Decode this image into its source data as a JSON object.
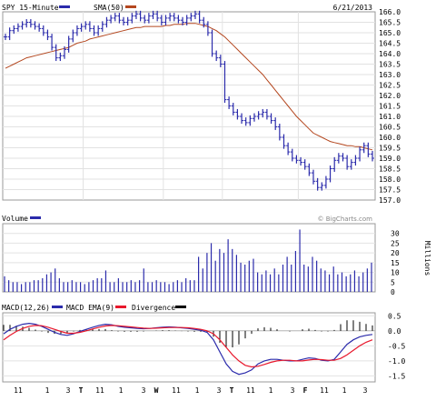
{
  "chart_data": [
    {
      "type": "bar",
      "subtype": "ohlc",
      "title": "SPY 15-Minute",
      "date": "6/21/2013",
      "legend": [
        {
          "label": "SPY 15-Minute",
          "color": "#2b2bab"
        },
        {
          "label": "SMA(50)",
          "color": "#b4471f"
        }
      ],
      "ylim": [
        157.0,
        166.0
      ],
      "yticks": [
        "166.0",
        "165.5",
        "165.0",
        "164.5",
        "164.0",
        "163.5",
        "163.0",
        "162.5",
        "162.0",
        "161.5",
        "161.0",
        "160.5",
        "160.0",
        "159.5",
        "159.0",
        "158.5",
        "158.0",
        "157.5",
        "157.0"
      ],
      "grid": true,
      "series": [
        {
          "name": "SPY 15-Minute",
          "values": [
            164.8,
            165.1,
            165.2,
            165.3,
            165.4,
            165.5,
            165.4,
            165.3,
            165.2,
            165.0,
            164.8,
            164.3,
            163.8,
            163.9,
            164.2,
            164.7,
            165.0,
            165.2,
            165.3,
            165.4,
            165.2,
            165.0,
            165.2,
            165.4,
            165.6,
            165.7,
            165.8,
            165.6,
            165.5,
            165.6,
            165.8,
            165.9,
            165.7,
            165.6,
            165.8,
            165.9,
            165.7,
            165.5,
            165.7,
            165.8,
            165.7,
            165.6,
            165.5,
            165.7,
            165.8,
            165.9,
            165.6,
            165.4,
            165.0,
            164.0,
            163.8,
            163.5,
            161.8,
            161.5,
            161.2,
            161.0,
            160.8,
            160.7,
            160.9,
            161.0,
            161.1,
            161.2,
            161.0,
            160.8,
            160.5,
            160.0,
            159.6,
            159.3,
            159.0,
            158.9,
            158.8,
            158.6,
            158.3,
            157.9,
            157.6,
            157.7,
            158.0,
            158.5,
            158.9,
            159.1,
            159.0,
            158.6,
            158.8,
            159.0,
            159.4,
            159.6,
            159.2,
            159.0
          ]
        },
        {
          "name": "SMA(50)",
          "values": [
            163.3,
            163.4,
            163.5,
            163.6,
            163.7,
            163.8,
            163.85,
            163.9,
            163.95,
            164.0,
            164.05,
            164.1,
            164.15,
            164.2,
            164.25,
            164.3,
            164.4,
            164.5,
            164.55,
            164.6,
            164.7,
            164.75,
            164.8,
            164.85,
            164.9,
            164.95,
            165.0,
            165.05,
            165.1,
            165.15,
            165.2,
            165.25,
            165.25,
            165.3,
            165.3,
            165.3,
            165.3,
            165.3,
            165.35,
            165.35,
            165.4,
            165.4,
            165.4,
            165.45,
            165.45,
            165.45,
            165.4,
            165.35,
            165.3,
            165.2,
            165.1,
            164.95,
            164.8,
            164.6,
            164.4,
            164.2,
            164.0,
            163.8,
            163.6,
            163.4,
            163.2,
            163.0,
            162.75,
            162.5,
            162.25,
            162.0,
            161.75,
            161.5,
            161.25,
            161.0,
            160.8,
            160.6,
            160.4,
            160.2,
            160.1,
            160.0,
            159.9,
            159.8,
            159.75,
            159.7,
            159.65,
            159.6,
            159.6,
            159.55,
            159.55,
            159.5,
            159.45,
            159.4
          ]
        }
      ]
    },
    {
      "type": "bar",
      "title": "Volume",
      "watermark": "© BigCharts.com",
      "ylabel": "Millions",
      "ylim": [
        0,
        35
      ],
      "yticks": [
        "30",
        "25",
        "20",
        "15",
        "10",
        "5",
        "0"
      ],
      "grid": true,
      "series": [
        {
          "name": "Volume",
          "values": [
            8,
            6,
            5,
            5,
            4,
            5,
            5,
            6,
            6,
            7,
            9,
            10,
            12,
            7,
            5,
            5,
            6,
            5,
            5,
            4,
            5,
            6,
            7,
            7,
            11,
            5,
            5,
            7,
            5,
            5,
            6,
            5,
            6,
            12,
            5,
            5,
            6,
            5,
            5,
            4,
            5,
            6,
            5,
            7,
            6,
            6,
            18,
            12,
            20,
            25,
            16,
            22,
            20,
            27,
            22,
            19,
            15,
            14,
            16,
            17,
            10,
            9,
            11,
            9,
            12,
            9,
            14,
            18,
            14,
            21,
            32,
            14,
            13,
            18,
            16,
            12,
            11,
            9,
            13,
            9,
            10,
            8,
            9,
            11,
            8,
            10,
            12,
            15
          ]
        }
      ]
    },
    {
      "type": "line",
      "title": "MACD",
      "legend": [
        {
          "label": "MACD(12,26)",
          "color": "#2b2bab"
        },
        {
          "label": "MACD EMA(9)",
          "color": "#e8182c"
        },
        {
          "label": "Divergence",
          "color": "#000000"
        }
      ],
      "ylim": [
        -1.7,
        0.6
      ],
      "yticks": [
        "0.5",
        "0.0",
        "-0.5",
        "-1.0",
        "-1.5"
      ],
      "grid": true,
      "x_tick_labels": [
        "11",
        "1",
        "3",
        "T",
        "11",
        "1",
        "3",
        "W",
        "11",
        "1",
        "3",
        "T",
        "11",
        "1",
        "3",
        "F",
        "11",
        "1",
        "3"
      ],
      "series": [
        {
          "name": "MACD(12,26)",
          "values": [
            -0.1,
            0.05,
            0.15,
            0.22,
            0.25,
            0.22,
            0.15,
            0.05,
            -0.05,
            -0.12,
            -0.15,
            -0.1,
            -0.02,
            0.05,
            0.12,
            0.18,
            0.22,
            0.2,
            0.15,
            0.12,
            0.1,
            0.08,
            0.07,
            0.08,
            0.1,
            0.12,
            0.13,
            0.12,
            0.1,
            0.08,
            0.05,
            0.02,
            -0.05,
            -0.3,
            -0.7,
            -1.1,
            -1.35,
            -1.45,
            -1.4,
            -1.3,
            -1.1,
            -1.0,
            -0.95,
            -0.95,
            -0.98,
            -1.0,
            -1.0,
            -0.95,
            -0.9,
            -0.92,
            -0.98,
            -1.0,
            -0.95,
            -0.7,
            -0.45,
            -0.3,
            -0.2,
            -0.15,
            -0.12
          ]
        },
        {
          "name": "MACD EMA(9)",
          "values": [
            -0.3,
            -0.15,
            -0.02,
            0.08,
            0.15,
            0.18,
            0.17,
            0.12,
            0.05,
            -0.02,
            -0.08,
            -0.08,
            -0.05,
            0.0,
            0.06,
            0.12,
            0.16,
            0.18,
            0.17,
            0.15,
            0.13,
            0.11,
            0.09,
            0.08,
            0.09,
            0.1,
            0.11,
            0.11,
            0.11,
            0.1,
            0.08,
            0.05,
            0.0,
            -0.1,
            -0.3,
            -0.55,
            -0.8,
            -1.0,
            -1.15,
            -1.2,
            -1.18,
            -1.12,
            -1.05,
            -1.0,
            -0.98,
            -0.98,
            -1.0,
            -1.0,
            -0.97,
            -0.95,
            -0.96,
            -0.98,
            -0.98,
            -0.92,
            -0.8,
            -0.65,
            -0.5,
            -0.38,
            -0.3
          ]
        },
        {
          "name": "Divergence",
          "values": [
            0.2,
            0.2,
            0.17,
            0.14,
            0.1,
            0.04,
            -0.02,
            -0.07,
            -0.1,
            -0.1,
            -0.07,
            -0.02,
            0.03,
            0.05,
            0.06,
            0.06,
            0.06,
            0.02,
            -0.02,
            -0.03,
            -0.03,
            -0.03,
            -0.02,
            0.0,
            0.01,
            0.02,
            0.02,
            0.01,
            -0.01,
            -0.02,
            -0.03,
            -0.03,
            -0.05,
            -0.2,
            -0.4,
            -0.55,
            -0.55,
            -0.45,
            -0.25,
            -0.1,
            0.08,
            0.12,
            0.1,
            0.05,
            0.0,
            -0.02,
            0.0,
            0.05,
            0.07,
            0.03,
            -0.02,
            -0.02,
            0.03,
            0.22,
            0.35,
            0.35,
            0.3,
            0.23,
            0.18
          ]
        }
      ]
    }
  ]
}
